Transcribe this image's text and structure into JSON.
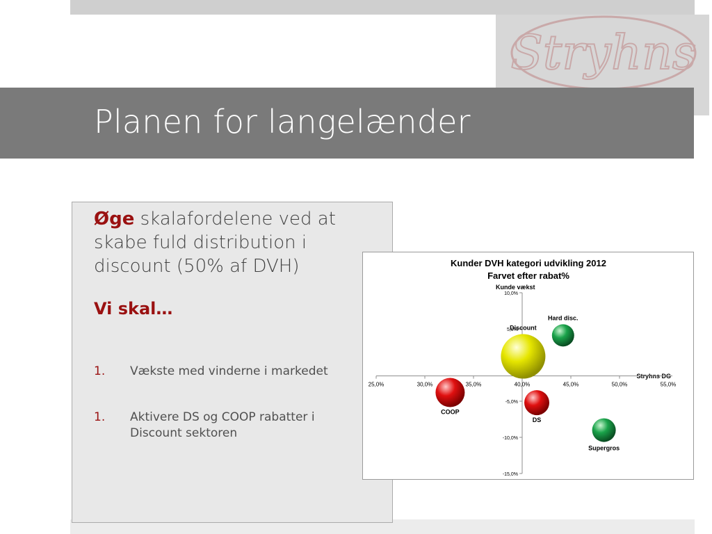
{
  "slide": {
    "title": "Planen for langelænder",
    "logo_text": "Stryhns"
  },
  "content": {
    "lead_emphasis": "Øge",
    "lead_text": " skalafordelene ved at skabe fuld distribution i discount (50% af DVH)",
    "subhead": "Vi skal…",
    "items": [
      {
        "number": "1.",
        "text": "Vækste med vinderne i markedet"
      },
      {
        "number": "1.",
        "text": "Aktivere DS og COOP rabatter i Discount sektoren"
      }
    ]
  },
  "chart_data": {
    "type": "scatter",
    "title": "Kunder DVH kategori udvikling 2012",
    "subtitle": "Farvet efter rabat%",
    "xlabel": "Stryhns DG",
    "ylabel": "Kunde vækst",
    "xlim": [
      0.25,
      0.55
    ],
    "ylim": [
      -0.15,
      0.1
    ],
    "x_ticks": [
      0.25,
      0.3,
      0.35,
      0.4,
      0.45,
      0.5,
      0.55
    ],
    "x_tick_labels": [
      "25,0%",
      "30,0%",
      "35,0%",
      "40,0%",
      "45,0%",
      "50,0%",
      "55,0%"
    ],
    "y_ticks": [
      0.1,
      0.05,
      0.0,
      -0.05,
      -0.1,
      -0.15
    ],
    "y_tick_labels": [
      "10,0%",
      "5,0%",
      "0,0%",
      "-5,0%",
      "-10,0%",
      "-15,0%"
    ],
    "grid": false,
    "points": [
      {
        "label": "Hard disc.",
        "x": 0.442,
        "y": 0.041,
        "size": 16,
        "color": "#1aa34a"
      },
      {
        "label": "Discount",
        "x": 0.401,
        "y": 0.012,
        "size": 32,
        "color": "#e6e600"
      },
      {
        "label": "COOP",
        "x": 0.326,
        "y": -0.038,
        "size": 21,
        "color": "#e01010"
      },
      {
        "label": "DS",
        "x": 0.415,
        "y": -0.052,
        "size": 18,
        "color": "#e01010"
      },
      {
        "label": "Supergros",
        "x": 0.484,
        "y": -0.09,
        "size": 17,
        "color": "#1aa34a"
      }
    ]
  }
}
